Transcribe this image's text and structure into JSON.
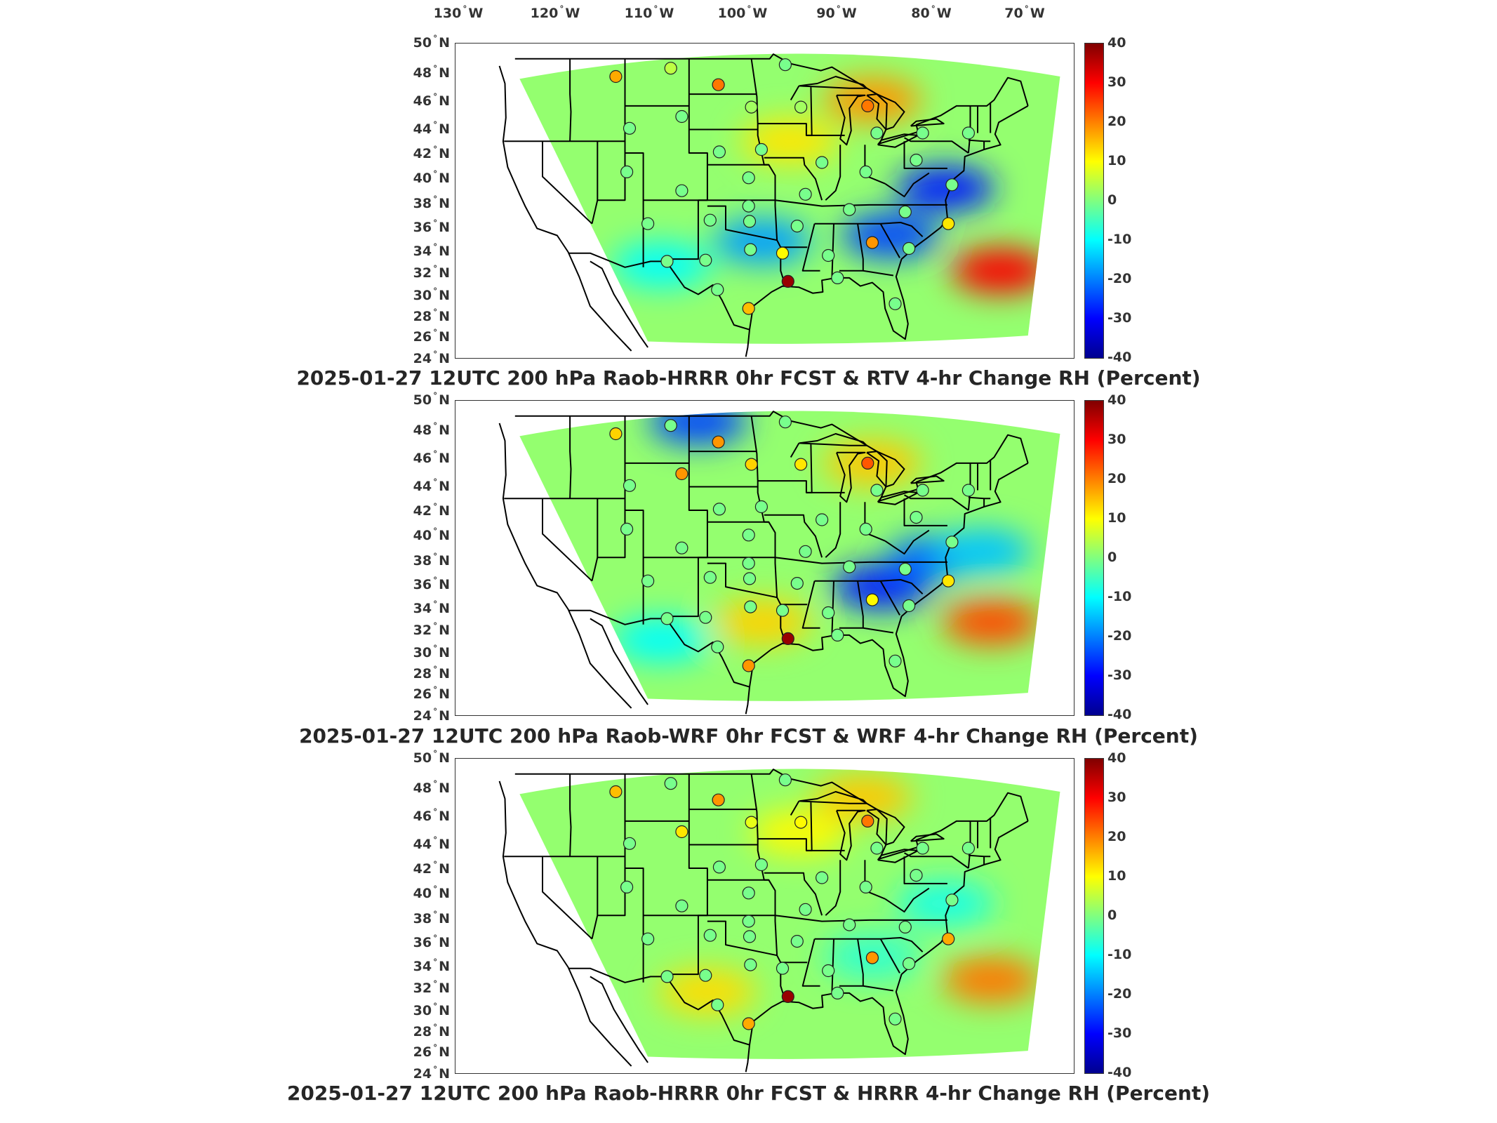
{
  "longitude_labels": [
    "130",
    "120",
    "110",
    "100",
    "90",
    "80",
    "70"
  ],
  "longitude_suffix": "W",
  "latitude_labels": [
    "50",
    "48",
    "46",
    "44",
    "42",
    "40",
    "38",
    "36",
    "34",
    "32",
    "30",
    "28",
    "26",
    "24"
  ],
  "latitude_suffix": "N",
  "colorbar_ticks": [
    "40",
    "30",
    "20",
    "10",
    "0",
    "-10",
    "-20",
    "-30",
    "-40"
  ],
  "colorbar_colors": [
    "#800000",
    "#ff0000",
    "#ff8000",
    "#ffff00",
    "#80ff80",
    "#00ffff",
    "#0080ff",
    "#0000ff",
    "#00008f"
  ],
  "panels": [
    {
      "title": "2025-01-27 12UTC 200 hPa Raob-HRRR 0hr FCST & RTV 4-hr Change RH (Percent)",
      "anomalies": [
        {
          "lon": -84,
          "lat": 45.5,
          "value": 20
        },
        {
          "lon": -70,
          "lat": 31,
          "value": 30
        },
        {
          "lon": -93,
          "lat": 42,
          "value": 12
        },
        {
          "lon": -82,
          "lat": 34,
          "value": -25
        },
        {
          "lon": -96,
          "lat": 33.5,
          "value": -18
        },
        {
          "lon": -76,
          "lat": 38,
          "value": -28
        },
        {
          "lon": -107,
          "lat": 31.5,
          "value": -10
        }
      ],
      "stations": [
        {
          "lon": -112,
          "lat": 47.5,
          "value": 18
        },
        {
          "lon": -106,
          "lat": 48.2,
          "value": 5
        },
        {
          "lon": -100.8,
          "lat": 46.8,
          "value": 22
        },
        {
          "lon": -93.5,
          "lat": 48.5,
          "value": 0
        },
        {
          "lon": -104.8,
          "lat": 44.1,
          "value": 0
        },
        {
          "lon": -97.2,
          "lat": 44.9,
          "value": 3
        },
        {
          "lon": -91.8,
          "lat": 44.9,
          "value": 3
        },
        {
          "lon": -84.5,
          "lat": 45.0,
          "value": 22
        },
        {
          "lon": -110.5,
          "lat": 43.1,
          "value": 0
        },
        {
          "lon": -100.7,
          "lat": 41.1,
          "value": 0
        },
        {
          "lon": -96.1,
          "lat": 41.3,
          "value": 0
        },
        {
          "lon": -89.5,
          "lat": 40.2,
          "value": 0
        },
        {
          "lon": -83.5,
          "lat": 42.7,
          "value": 0
        },
        {
          "lon": -78.5,
          "lat": 42.7,
          "value": 0
        },
        {
          "lon": -73.5,
          "lat": 42.7,
          "value": 0
        },
        {
          "lon": -110.8,
          "lat": 39.4,
          "value": 0
        },
        {
          "lon": -104.8,
          "lat": 37.8,
          "value": 0
        },
        {
          "lon": -97.5,
          "lat": 38.9,
          "value": 0
        },
        {
          "lon": -91.3,
          "lat": 37.5,
          "value": 0
        },
        {
          "lon": -84.7,
          "lat": 39.4,
          "value": 0
        },
        {
          "lon": -79.2,
          "lat": 40.4,
          "value": 0
        },
        {
          "lon": -75.3,
          "lat": 38.3,
          "value": 0
        },
        {
          "lon": -108.5,
          "lat": 35.0,
          "value": 0
        },
        {
          "lon": -101.7,
          "lat": 35.3,
          "value": 0
        },
        {
          "lon": -97.4,
          "lat": 35.2,
          "value": 0
        },
        {
          "lon": -92.2,
          "lat": 34.8,
          "value": 0
        },
        {
          "lon": -86.5,
          "lat": 36.2,
          "value": 0
        },
        {
          "lon": -80.4,
          "lat": 36.0,
          "value": 0
        },
        {
          "lon": -75.7,
          "lat": 35.0,
          "value": 12
        },
        {
          "lon": -97.5,
          "lat": 36.5,
          "value": 0
        },
        {
          "lon": -106.4,
          "lat": 31.8,
          "value": 0
        },
        {
          "lon": -102.2,
          "lat": 31.9,
          "value": 0
        },
        {
          "lon": -97.3,
          "lat": 32.8,
          "value": 0
        },
        {
          "lon": -93.8,
          "lat": 32.5,
          "value": 10
        },
        {
          "lon": -88.8,
          "lat": 32.3,
          "value": 0
        },
        {
          "lon": -84.0,
          "lat": 33.4,
          "value": 20
        },
        {
          "lon": -80.0,
          "lat": 32.9,
          "value": 0
        },
        {
          "lon": -93.2,
          "lat": 30.1,
          "value": 38
        },
        {
          "lon": -87.8,
          "lat": 30.4,
          "value": 0
        },
        {
          "lon": -100.9,
          "lat": 29.4,
          "value": 0
        },
        {
          "lon": -97.5,
          "lat": 27.8,
          "value": 16
        },
        {
          "lon": -81.5,
          "lat": 28.2,
          "value": 0
        }
      ]
    },
    {
      "title": "2025-01-27 12UTC 200 hPa Raob-WRF 0hr FCST & WRF 4-hr Change RH (Percent)",
      "anomalies": [
        {
          "lon": -84,
          "lat": 45.0,
          "value": 15
        },
        {
          "lon": -71,
          "lat": 31.5,
          "value": 25
        },
        {
          "lon": -103,
          "lat": 48.5,
          "value": -25
        },
        {
          "lon": -83,
          "lat": 34.5,
          "value": -28
        },
        {
          "lon": -77,
          "lat": 37,
          "value": -22
        },
        {
          "lon": -96,
          "lat": 31.5,
          "value": 14
        },
        {
          "lon": -107,
          "lat": 30,
          "value": -10
        },
        {
          "lon": -72,
          "lat": 37.5,
          "value": -15
        }
      ],
      "stations": [
        {
          "lon": -112,
          "lat": 47.5,
          "value": 14
        },
        {
          "lon": -106,
          "lat": 48.2,
          "value": 0
        },
        {
          "lon": -100.8,
          "lat": 46.8,
          "value": 20
        },
        {
          "lon": -93.5,
          "lat": 48.5,
          "value": 0
        },
        {
          "lon": -104.8,
          "lat": 44.1,
          "value": 20
        },
        {
          "lon": -97.2,
          "lat": 44.9,
          "value": 14
        },
        {
          "lon": -91.8,
          "lat": 44.9,
          "value": 12
        },
        {
          "lon": -84.5,
          "lat": 45.0,
          "value": 24
        },
        {
          "lon": -110.5,
          "lat": 43.1,
          "value": 0
        },
        {
          "lon": -100.7,
          "lat": 41.1,
          "value": 0
        },
        {
          "lon": -96.1,
          "lat": 41.3,
          "value": 0
        },
        {
          "lon": -89.5,
          "lat": 40.2,
          "value": 0
        },
        {
          "lon": -83.5,
          "lat": 42.7,
          "value": 0
        },
        {
          "lon": -78.5,
          "lat": 42.7,
          "value": 0
        },
        {
          "lon": -73.5,
          "lat": 42.7,
          "value": 0
        },
        {
          "lon": -110.8,
          "lat": 39.4,
          "value": 0
        },
        {
          "lon": -104.8,
          "lat": 37.8,
          "value": 0
        },
        {
          "lon": -97.5,
          "lat": 38.9,
          "value": 0
        },
        {
          "lon": -91.3,
          "lat": 37.5,
          "value": 0
        },
        {
          "lon": -84.7,
          "lat": 39.4,
          "value": 0
        },
        {
          "lon": -79.2,
          "lat": 40.4,
          "value": 0
        },
        {
          "lon": -75.3,
          "lat": 38.3,
          "value": 0
        },
        {
          "lon": -108.5,
          "lat": 35.0,
          "value": 0
        },
        {
          "lon": -101.7,
          "lat": 35.3,
          "value": 0
        },
        {
          "lon": -97.4,
          "lat": 35.2,
          "value": 0
        },
        {
          "lon": -92.2,
          "lat": 34.8,
          "value": 0
        },
        {
          "lon": -86.5,
          "lat": 36.2,
          "value": 0
        },
        {
          "lon": -80.4,
          "lat": 36.0,
          "value": 0
        },
        {
          "lon": -75.7,
          "lat": 35.0,
          "value": 12
        },
        {
          "lon": -97.5,
          "lat": 36.5,
          "value": 0
        },
        {
          "lon": -106.4,
          "lat": 31.8,
          "value": 0
        },
        {
          "lon": -102.2,
          "lat": 31.9,
          "value": 0
        },
        {
          "lon": -97.3,
          "lat": 32.8,
          "value": 0
        },
        {
          "lon": -93.8,
          "lat": 32.5,
          "value": 0
        },
        {
          "lon": -88.8,
          "lat": 32.3,
          "value": 0
        },
        {
          "lon": -84.0,
          "lat": 33.4,
          "value": 10
        },
        {
          "lon": -80.0,
          "lat": 32.9,
          "value": 0
        },
        {
          "lon": -93.2,
          "lat": 30.1,
          "value": 38
        },
        {
          "lon": -87.8,
          "lat": 30.4,
          "value": 0
        },
        {
          "lon": -100.9,
          "lat": 29.4,
          "value": 0
        },
        {
          "lon": -97.5,
          "lat": 27.8,
          "value": 20
        },
        {
          "lon": -81.5,
          "lat": 28.2,
          "value": 0
        }
      ]
    },
    {
      "title": "2025-01-27 12UTC 200 hPa Raob-HRRR 0hr FCST & HRRR 4-hr Change RH (Percent)",
      "anomalies": [
        {
          "lon": -85,
          "lat": 47,
          "value": 15
        },
        {
          "lon": -71,
          "lat": 31.5,
          "value": 22
        },
        {
          "lon": -102,
          "lat": 30.5,
          "value": 13
        },
        {
          "lon": -84,
          "lat": 33.5,
          "value": -6
        },
        {
          "lon": -92,
          "lat": 44,
          "value": 10
        },
        {
          "lon": -76,
          "lat": 38,
          "value": -8
        }
      ],
      "stations": [
        {
          "lon": -112,
          "lat": 47.5,
          "value": 16
        },
        {
          "lon": -106,
          "lat": 48.2,
          "value": 0
        },
        {
          "lon": -100.8,
          "lat": 46.8,
          "value": 20
        },
        {
          "lon": -93.5,
          "lat": 48.5,
          "value": 0
        },
        {
          "lon": -104.8,
          "lat": 44.1,
          "value": 12
        },
        {
          "lon": -97.2,
          "lat": 44.9,
          "value": 8
        },
        {
          "lon": -91.8,
          "lat": 44.9,
          "value": 10
        },
        {
          "lon": -84.5,
          "lat": 45.0,
          "value": 22
        },
        {
          "lon": -110.5,
          "lat": 43.1,
          "value": 0
        },
        {
          "lon": -100.7,
          "lat": 41.1,
          "value": 0
        },
        {
          "lon": -96.1,
          "lat": 41.3,
          "value": 0
        },
        {
          "lon": -89.5,
          "lat": 40.2,
          "value": 0
        },
        {
          "lon": -83.5,
          "lat": 42.7,
          "value": 0
        },
        {
          "lon": -78.5,
          "lat": 42.7,
          "value": 0
        },
        {
          "lon": -73.5,
          "lat": 42.7,
          "value": 0
        },
        {
          "lon": -110.8,
          "lat": 39.4,
          "value": 0
        },
        {
          "lon": -104.8,
          "lat": 37.8,
          "value": 0
        },
        {
          "lon": -97.5,
          "lat": 38.9,
          "value": 0
        },
        {
          "lon": -91.3,
          "lat": 37.5,
          "value": 0
        },
        {
          "lon": -84.7,
          "lat": 39.4,
          "value": 0
        },
        {
          "lon": -79.2,
          "lat": 40.4,
          "value": 0
        },
        {
          "lon": -75.3,
          "lat": 38.3,
          "value": 0
        },
        {
          "lon": -108.5,
          "lat": 35.0,
          "value": 0
        },
        {
          "lon": -101.7,
          "lat": 35.3,
          "value": 0
        },
        {
          "lon": -97.4,
          "lat": 35.2,
          "value": 0
        },
        {
          "lon": -92.2,
          "lat": 34.8,
          "value": 0
        },
        {
          "lon": -86.5,
          "lat": 36.2,
          "value": 0
        },
        {
          "lon": -80.4,
          "lat": 36.0,
          "value": 0
        },
        {
          "lon": -75.7,
          "lat": 35.0,
          "value": 18
        },
        {
          "lon": -97.5,
          "lat": 36.5,
          "value": 0
        },
        {
          "lon": -106.4,
          "lat": 31.8,
          "value": 0
        },
        {
          "lon": -102.2,
          "lat": 31.9,
          "value": 0
        },
        {
          "lon": -97.3,
          "lat": 32.8,
          "value": 0
        },
        {
          "lon": -93.8,
          "lat": 32.5,
          "value": 0
        },
        {
          "lon": -88.8,
          "lat": 32.3,
          "value": 0
        },
        {
          "lon": -84.0,
          "lat": 33.4,
          "value": 20
        },
        {
          "lon": -80.0,
          "lat": 32.9,
          "value": 0
        },
        {
          "lon": -93.2,
          "lat": 30.1,
          "value": 38
        },
        {
          "lon": -87.8,
          "lat": 30.4,
          "value": 0
        },
        {
          "lon": -100.9,
          "lat": 29.4,
          "value": 0
        },
        {
          "lon": -97.5,
          "lat": 27.8,
          "value": 18
        },
        {
          "lon": -81.5,
          "lat": 28.2,
          "value": 0
        }
      ]
    }
  ]
}
